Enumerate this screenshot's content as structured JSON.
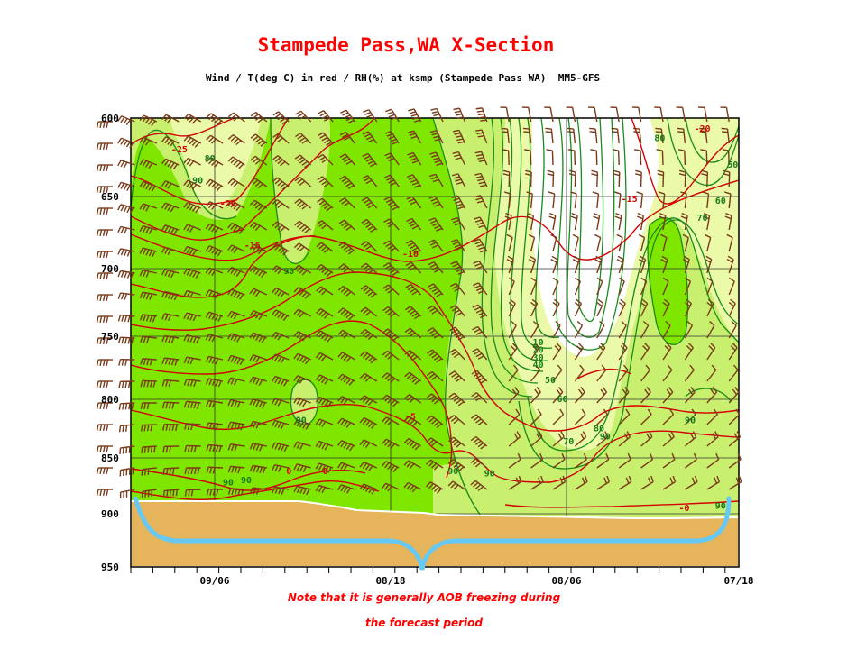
{
  "page": {
    "title": "Stampede Pass,WA X-Section",
    "subtitle": "Wind / T(deg C) in red / RH(%) at ksmp (Stampede Pass WA)  MM5-GFS",
    "note_line1": "Note that it is generally AOB freezing during",
    "note_line2": "the forecast period"
  },
  "colors": {
    "rh_moist": "#7fe600",
    "rh_medium": "#c8f06e",
    "rh_dry": "#eafaa8",
    "terrain": "#e6b45a",
    "temperature": "#d40000",
    "rh_contour": "#1a8a1a",
    "wind_barb": "#7a3a1a",
    "brace": "#66c8f5"
  },
  "chart_data": {
    "type": "heatmap",
    "title": "Wind / T(deg C) in red / RH(%) at ksmp (Stampede Pass WA)  MM5-GFS",
    "y_axis": {
      "label": "",
      "ticks": [
        600,
        650,
        700,
        750,
        800,
        850,
        900,
        950
      ],
      "range": [
        600,
        950
      ],
      "inverted": true
    },
    "x_axis": {
      "label": "",
      "ticks": [
        "09/06",
        "08/18",
        "08/06",
        "07/18"
      ]
    },
    "grid": true,
    "temperature_labels": [
      {
        "value": "-25",
        "x": 0.08,
        "p": 620
      },
      {
        "value": "-20",
        "x": 0.16,
        "p": 655
      },
      {
        "value": "-15",
        "x": 0.2,
        "p": 684
      },
      {
        "value": "-10",
        "x": 0.46,
        "p": 690
      },
      {
        "value": "-5",
        "x": 0.46,
        "p": 815
      },
      {
        "value": "0",
        "x": 0.26,
        "p": 862
      },
      {
        "value": "0",
        "x": 0.32,
        "p": 862
      },
      {
        "value": "-15",
        "x": 0.82,
        "p": 652
      },
      {
        "value": "-20",
        "x": 0.94,
        "p": 607
      },
      {
        "value": "-0",
        "x": 0.91,
        "p": 895
      }
    ],
    "rh_labels": [
      {
        "value": "80",
        "x": 0.13,
        "p": 626
      },
      {
        "value": "90",
        "x": 0.11,
        "p": 640
      },
      {
        "value": "90",
        "x": 0.26,
        "p": 702
      },
      {
        "value": "90",
        "x": 0.28,
        "p": 818
      },
      {
        "value": "90",
        "x": 0.16,
        "p": 872
      },
      {
        "value": "90",
        "x": 0.19,
        "p": 870
      },
      {
        "value": "90",
        "x": 0.53,
        "p": 862
      },
      {
        "value": "90",
        "x": 0.59,
        "p": 864
      },
      {
        "value": "10",
        "x": 0.67,
        "p": 755
      },
      {
        "value": "20",
        "x": 0.67,
        "p": 761
      },
      {
        "value": "30",
        "x": 0.67,
        "p": 767
      },
      {
        "value": "40",
        "x": 0.67,
        "p": 773
      },
      {
        "value": "50",
        "x": 0.69,
        "p": 785
      },
      {
        "value": "60",
        "x": 0.71,
        "p": 800
      },
      {
        "value": "70",
        "x": 0.72,
        "p": 836
      },
      {
        "value": "80",
        "x": 0.77,
        "p": 825
      },
      {
        "value": "90",
        "x": 0.78,
        "p": 832
      },
      {
        "value": "80",
        "x": 0.87,
        "p": 613
      },
      {
        "value": "50",
        "x": 0.99,
        "p": 630
      },
      {
        "value": "60",
        "x": 0.97,
        "p": 653
      },
      {
        "value": "70",
        "x": 0.94,
        "p": 665
      },
      {
        "value": "90",
        "x": 0.92,
        "p": 818
      },
      {
        "value": "90",
        "x": 0.97,
        "p": 893
      }
    ]
  }
}
